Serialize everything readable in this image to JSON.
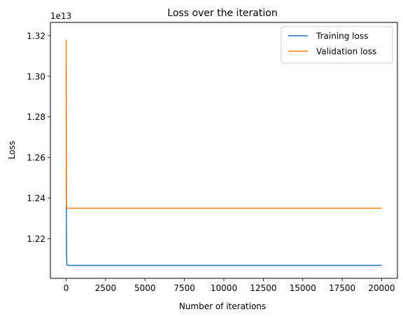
{
  "chart_data": {
    "type": "line",
    "title": "Loss over the iteration",
    "xlabel": "Number of iterations",
    "ylabel": "Loss",
    "offset_text": "1e13",
    "xlim": [
      -1000,
      21000
    ],
    "ylim": [
      1.2005,
      1.3265
    ],
    "x_ticks": [
      0,
      2500,
      5000,
      7500,
      10000,
      12500,
      15000,
      17500,
      20000
    ],
    "x_tick_labels": [
      "0",
      "2500",
      "5000",
      "7500",
      "10000",
      "12500",
      "15000",
      "17500",
      "20000"
    ],
    "y_ticks": [
      1.22,
      1.24,
      1.26,
      1.28,
      1.3,
      1.32
    ],
    "y_tick_labels": [
      "1.22",
      "1.24",
      "1.26",
      "1.28",
      "1.30",
      "1.32"
    ],
    "y_scale_note": "values in units of 1e13",
    "legend_position": "top-right",
    "grid": false,
    "series": [
      {
        "name": "Training loss",
        "color": "#1f77b4",
        "x": [
          0,
          10,
          25,
          50,
          100,
          20000
        ],
        "y": [
          1.3025,
          1.25,
          1.212,
          1.207,
          1.2069,
          1.2069
        ]
      },
      {
        "name": "Validation loss",
        "color": "#ff7f0e",
        "x": [
          0,
          10,
          25,
          50,
          100,
          20000
        ],
        "y": [
          1.3178,
          1.27,
          1.237,
          1.235,
          1.235,
          1.235
        ]
      }
    ]
  }
}
